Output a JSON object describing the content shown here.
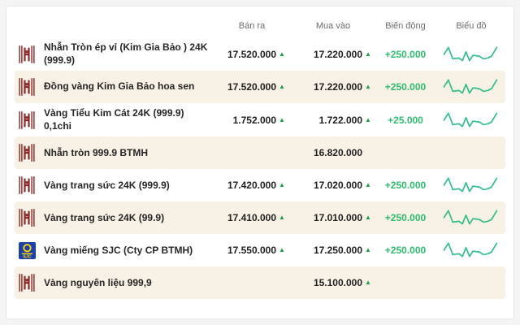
{
  "header": {
    "sell": "Bán ra",
    "buy": "Mua vào",
    "change": "Biến động",
    "chart": "Biểu đồ"
  },
  "colors": {
    "up_arrow_green": "#1e9e44",
    "change_green": "#2dbd6e",
    "sparkline_green": "#36bf8d",
    "row_alt_bg": "#f8f1e5",
    "brand_red": "#8e2626",
    "sjc_blue": "#1c3faa",
    "sjc_yellow": "#ffd400"
  },
  "sparkline_points": [
    [
      2,
      12
    ],
    [
      7,
      4
    ],
    [
      12,
      17
    ],
    [
      19,
      16
    ],
    [
      23,
      19
    ],
    [
      27,
      9
    ],
    [
      31,
      19
    ],
    [
      35,
      13
    ],
    [
      42,
      14
    ],
    [
      47,
      17
    ],
    [
      52,
      16
    ],
    [
      56,
      14
    ],
    [
      62,
      4
    ]
  ],
  "rows": [
    {
      "icon": "btmh-logo-icon",
      "name": "Nhẫn Tròn ép vỉ (Kim Gia Bảo ) 24K\n(999.9)",
      "sell": "17.520.000",
      "sell_up": true,
      "buy": "17.220.000",
      "buy_up": true,
      "change": "+250.000",
      "has_spark": true
    },
    {
      "icon": "btmh-logo-icon",
      "name": "Đồng vàng Kim Gia Bảo hoa sen",
      "sell": "17.520.000",
      "sell_up": true,
      "buy": "17.220.000",
      "buy_up": true,
      "change": "+250.000",
      "has_spark": true
    },
    {
      "icon": "btmh-logo-icon",
      "name": "Vàng Tiểu Kim Cát 24K (999.9)\n0,1chi",
      "sell": "1.752.000",
      "sell_up": true,
      "buy": "1.722.000",
      "buy_up": true,
      "change": "+25.000",
      "has_spark": true
    },
    {
      "icon": "btmh-logo-icon",
      "name": "Nhẫn tròn 999.9 BTMH",
      "sell": "",
      "sell_up": false,
      "buy": "16.820.000",
      "buy_up": false,
      "change": "",
      "has_spark": false
    },
    {
      "icon": "btmh-logo-icon",
      "name": "Vàng trang sức 24K (999.9)",
      "sell": "17.420.000",
      "sell_up": true,
      "buy": "17.020.000",
      "buy_up": true,
      "change": "+250.000",
      "has_spark": true
    },
    {
      "icon": "btmh-logo-icon",
      "name": "Vàng trang sức 24K (99.9)",
      "sell": "17.410.000",
      "sell_up": true,
      "buy": "17.010.000",
      "buy_up": true,
      "change": "+250.000",
      "has_spark": true
    },
    {
      "icon": "sjc-logo-icon",
      "name": "Vàng miếng SJC (Cty CP BTMH)",
      "sell": "17.550.000",
      "sell_up": true,
      "buy": "17.250.000",
      "buy_up": true,
      "change": "+250.000",
      "has_spark": true
    },
    {
      "icon": "btmh-logo-icon",
      "name": "Vàng nguyên liệu 999,9",
      "sell": "",
      "sell_up": false,
      "buy": "15.100.000",
      "buy_up": true,
      "change": "",
      "has_spark": false
    }
  ]
}
